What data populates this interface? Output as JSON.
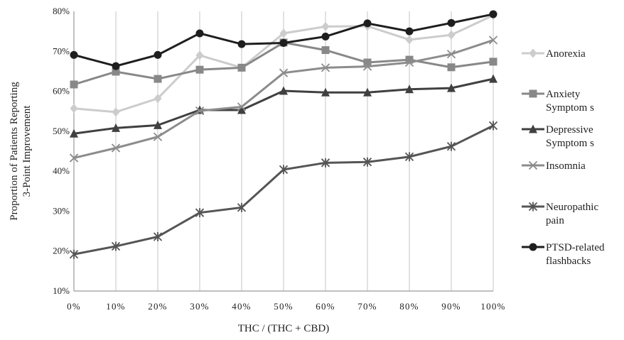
{
  "chart_data": {
    "type": "line",
    "title": "",
    "xlabel": "THC / (THC + CBD)",
    "ylabel_lines": [
      "Proportion of Patients Reporting",
      "3-Point Improvement"
    ],
    "categories": [
      "0%",
      "10%",
      "20%",
      "30%",
      "40%",
      "50%",
      "60%",
      "70%",
      "80%",
      "90%",
      "100%"
    ],
    "x": [
      0,
      10,
      20,
      30,
      40,
      50,
      60,
      70,
      80,
      90,
      100
    ],
    "ylim": [
      10,
      80
    ],
    "yticks": [
      10,
      20,
      30,
      40,
      50,
      60,
      70,
      80
    ],
    "ytick_labels": [
      "10%",
      "20%",
      "30%",
      "40%",
      "50%",
      "60%",
      "70%",
      "80%"
    ],
    "grid": "vertical",
    "legend": "right",
    "series": [
      {
        "name": "Anorexia",
        "legend_lines": [
          "Anorexia"
        ],
        "marker": "diamond",
        "color": "#cccccc",
        "values": [
          55.7,
          54.8,
          58.2,
          69.0,
          65.9,
          74.5,
          76.2,
          76.3,
          72.9,
          74.1,
          79.0
        ]
      },
      {
        "name": "Anxiety Symptoms",
        "legend_lines": [
          "Anxiety",
          "Symptom s"
        ],
        "marker": "square",
        "color": "#888888",
        "values": [
          61.7,
          64.9,
          63.1,
          65.4,
          65.9,
          72.2,
          70.3,
          67.2,
          67.9,
          66.0,
          67.4
        ]
      },
      {
        "name": "Depressive Symptoms",
        "legend_lines": [
          "Depressive",
          "Symptom s"
        ],
        "marker": "triangle",
        "color": "#404040",
        "values": [
          49.4,
          50.8,
          51.5,
          55.3,
          55.3,
          60.1,
          59.7,
          59.7,
          60.5,
          60.8,
          63.1
        ]
      },
      {
        "name": "Insomnia",
        "legend_lines": [
          "Insomnia"
        ],
        "marker": "x",
        "color": "#8c8c8c",
        "values": [
          43.3,
          45.8,
          48.6,
          55.1,
          56.1,
          64.6,
          65.9,
          66.2,
          67.2,
          69.3,
          72.8
        ]
      },
      {
        "name": "Neuropathic pain",
        "legend_lines": [
          "Neuropathic",
          "pain"
        ],
        "marker": "star",
        "color": "#555555",
        "values": [
          19.2,
          21.2,
          23.6,
          29.6,
          30.9,
          40.4,
          42.1,
          42.3,
          43.6,
          46.2,
          51.4
        ]
      },
      {
        "name": "PTSD-related flashbacks",
        "legend_lines": [
          "PTSD-related",
          "flashbacks"
        ],
        "marker": "circle",
        "color": "#1e1e1e",
        "values": [
          69.1,
          66.3,
          69.1,
          74.5,
          71.8,
          72.1,
          73.7,
          77.0,
          75.0,
          77.1,
          79.3
        ]
      }
    ]
  }
}
